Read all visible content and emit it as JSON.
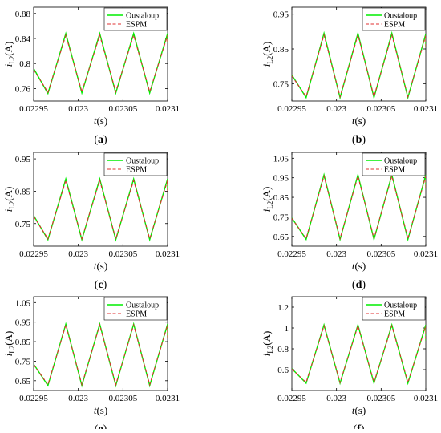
{
  "figure": {
    "panels": [
      {
        "label": "(a)",
        "letter": "a"
      },
      {
        "label": "(b)",
        "letter": "b"
      },
      {
        "label": "(c)",
        "letter": "c"
      },
      {
        "label": "(d)",
        "letter": "d"
      },
      {
        "label": "(e)",
        "letter": "e"
      },
      {
        "label": "(f)",
        "letter": "f"
      }
    ]
  },
  "chart_data": [
    {
      "type": "line",
      "panel": "(a)",
      "xlabel": "t(s)",
      "ylabel": "iL2(A)",
      "xlim": [
        0.02295,
        0.0231
      ],
      "ylim": [
        0.74,
        0.89
      ],
      "xticks": [
        "0.02295",
        "0.023",
        "0.02305",
        "0.0231"
      ],
      "yticks": [
        "0.76",
        "0.8",
        "0.84",
        "0.88"
      ],
      "grid": false,
      "legend_position": "top-right",
      "series": [
        {
          "name": "Oustaloup",
          "color": "#00ee00",
          "style": "solid",
          "x": [
            0.02295,
            0.022966,
            0.022986,
            0.023004,
            0.023024,
            0.023042,
            0.023062,
            0.02308,
            0.0231,
            0.0231
          ],
          "y": [
            0.792,
            0.752,
            0.848,
            0.753,
            0.848,
            0.753,
            0.848,
            0.753,
            0.848,
            0.835
          ]
        },
        {
          "name": "ESPM",
          "color": "#e03030",
          "style": "dashed",
          "x": [
            0.02295,
            0.022966,
            0.022986,
            0.023004,
            0.023024,
            0.023042,
            0.023062,
            0.02308,
            0.0231,
            0.0231
          ],
          "y": [
            0.79,
            0.754,
            0.845,
            0.755,
            0.845,
            0.755,
            0.845,
            0.755,
            0.845,
            0.833
          ]
        }
      ]
    },
    {
      "type": "line",
      "panel": "(b)",
      "xlabel": "t(s)",
      "ylabel": "iL2(A)",
      "xlim": [
        0.02295,
        0.0231
      ],
      "ylim": [
        0.7,
        0.97
      ],
      "xticks": [
        "0.02295",
        "0.023",
        "0.02305",
        "0.0231"
      ],
      "yticks": [
        "0.75",
        "0.85",
        "0.95"
      ],
      "grid": false,
      "legend_position": "top-right",
      "series": [
        {
          "name": "Oustaloup",
          "color": "#00ee00",
          "style": "solid",
          "x": [
            0.02295,
            0.022966,
            0.022986,
            0.023004,
            0.023024,
            0.023042,
            0.023062,
            0.02308,
            0.0231,
            0.0231
          ],
          "y": [
            0.775,
            0.71,
            0.895,
            0.71,
            0.895,
            0.71,
            0.895,
            0.71,
            0.893,
            0.855
          ]
        },
        {
          "name": "ESPM",
          "color": "#e03030",
          "style": "dashed",
          "x": [
            0.02295,
            0.022966,
            0.022986,
            0.023004,
            0.023024,
            0.023042,
            0.023062,
            0.02308,
            0.0231,
            0.0231
          ],
          "y": [
            0.772,
            0.713,
            0.89,
            0.713,
            0.89,
            0.713,
            0.89,
            0.713,
            0.888,
            0.852
          ]
        }
      ]
    },
    {
      "type": "line",
      "panel": "(c)",
      "xlabel": "t(s)",
      "ylabel": "iL2(A)",
      "xlim": [
        0.02295,
        0.0231
      ],
      "ylim": [
        0.68,
        0.97
      ],
      "xticks": [
        "0.02295",
        "0.023",
        "0.02305",
        "0.0231"
      ],
      "yticks": [
        "0.75",
        "0.85",
        "0.95"
      ],
      "grid": false,
      "legend_position": "top-right",
      "series": [
        {
          "name": "Oustaloup",
          "color": "#00ee00",
          "style": "solid",
          "x": [
            0.02295,
            0.022966,
            0.022986,
            0.023004,
            0.023024,
            0.023042,
            0.023062,
            0.02308,
            0.0231,
            0.0231
          ],
          "y": [
            0.775,
            0.7,
            0.888,
            0.7,
            0.888,
            0.7,
            0.888,
            0.7,
            0.888,
            0.852
          ]
        },
        {
          "name": "ESPM",
          "color": "#e03030",
          "style": "dashed",
          "x": [
            0.02295,
            0.022966,
            0.022986,
            0.023004,
            0.023024,
            0.023042,
            0.023062,
            0.02308,
            0.0231,
            0.0231
          ],
          "y": [
            0.772,
            0.703,
            0.883,
            0.703,
            0.883,
            0.703,
            0.883,
            0.703,
            0.883,
            0.849
          ]
        }
      ]
    },
    {
      "type": "line",
      "panel": "(d)",
      "xlabel": "t(s)",
      "ylabel": "iL2(A)",
      "xlim": [
        0.02295,
        0.0231
      ],
      "ylim": [
        0.6,
        1.08
      ],
      "xticks": [
        "0.02295",
        "0.023",
        "0.02305",
        "0.0231"
      ],
      "yticks": [
        "0.65",
        "0.75",
        "0.85",
        "0.95",
        "1.05"
      ],
      "grid": false,
      "legend_position": "top-right",
      "series": [
        {
          "name": "Oustaloup",
          "color": "#00ee00",
          "style": "solid",
          "x": [
            0.02295,
            0.022966,
            0.022986,
            0.023004,
            0.023024,
            0.023042,
            0.023062,
            0.02308,
            0.0231,
            0.0231
          ],
          "y": [
            0.745,
            0.635,
            0.965,
            0.635,
            0.965,
            0.635,
            0.965,
            0.635,
            0.965,
            0.895
          ]
        },
        {
          "name": "ESPM",
          "color": "#e03030",
          "style": "dashed",
          "x": [
            0.02295,
            0.022966,
            0.022986,
            0.023004,
            0.023024,
            0.023042,
            0.023062,
            0.02308,
            0.0231,
            0.0231
          ],
          "y": [
            0.742,
            0.64,
            0.958,
            0.64,
            0.958,
            0.64,
            0.958,
            0.64,
            0.958,
            0.89
          ]
        }
      ]
    },
    {
      "type": "line",
      "panel": "(e)",
      "xlabel": "t(s)",
      "ylabel": "iL2(A)",
      "xlim": [
        0.02295,
        0.0231
      ],
      "ylim": [
        0.6,
        1.08
      ],
      "xticks": [
        "0.02295",
        "0.023",
        "0.02305",
        "0.0231"
      ],
      "yticks": [
        "0.65",
        "0.75",
        "0.85",
        "0.95",
        "1.05"
      ],
      "grid": false,
      "legend_position": "top-right",
      "series": [
        {
          "name": "Oustaloup",
          "color": "#00ee00",
          "style": "solid",
          "x": [
            0.02295,
            0.022966,
            0.022986,
            0.023004,
            0.023024,
            0.023042,
            0.023062,
            0.02308,
            0.0231,
            0.0231
          ],
          "y": [
            0.735,
            0.625,
            0.94,
            0.625,
            0.94,
            0.625,
            0.94,
            0.625,
            0.94,
            0.87
          ]
        },
        {
          "name": "ESPM",
          "color": "#e03030",
          "style": "dashed",
          "x": [
            0.02295,
            0.022966,
            0.022986,
            0.023004,
            0.023024,
            0.023042,
            0.023062,
            0.02308,
            0.0231,
            0.0231
          ],
          "y": [
            0.732,
            0.63,
            0.935,
            0.63,
            0.935,
            0.63,
            0.935,
            0.63,
            0.935,
            0.866
          ]
        }
      ]
    },
    {
      "type": "line",
      "panel": "(f)",
      "xlabel": "t(s)",
      "ylabel": "iL2(A)",
      "xlim": [
        0.02295,
        0.0231
      ],
      "ylim": [
        0.4,
        1.3
      ],
      "xticks": [
        "0.02295",
        "0.023",
        "0.02305",
        "0.0231"
      ],
      "yticks": [
        "0.6",
        "0.8",
        "1",
        "1.2"
      ],
      "grid": false,
      "legend_position": "top-right",
      "series": [
        {
          "name": "Oustaloup",
          "color": "#00ee00",
          "style": "solid",
          "x": [
            0.02295,
            0.022966,
            0.022986,
            0.023004,
            0.023024,
            0.023042,
            0.023062,
            0.02308,
            0.0231,
            0.0231
          ],
          "y": [
            0.61,
            0.47,
            1.03,
            0.47,
            1.03,
            0.47,
            1.03,
            0.47,
            1.03,
            0.88
          ]
        },
        {
          "name": "ESPM",
          "color": "#e03030",
          "style": "dashed",
          "x": [
            0.02295,
            0.022966,
            0.022986,
            0.023004,
            0.023024,
            0.023042,
            0.023062,
            0.02308,
            0.0231,
            0.0231
          ],
          "y": [
            0.605,
            0.478,
            1.02,
            0.478,
            1.02,
            0.478,
            1.02,
            0.478,
            1.02,
            0.875
          ]
        }
      ]
    }
  ]
}
